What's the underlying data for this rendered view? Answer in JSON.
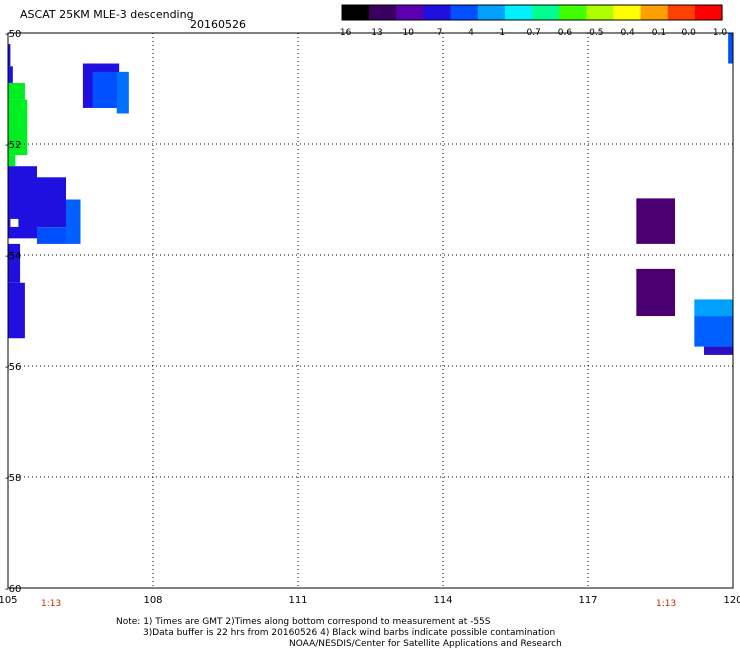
{
  "header": {
    "title": "ASCAT 25KM MLE-3 descending",
    "date": "20160526"
  },
  "colorbar": {
    "labels": [
      "-16",
      "-13",
      "-10",
      "-7",
      "-4",
      "-1",
      "-0.7",
      "-0.6",
      "-0.5",
      "-0.4",
      "-0.1",
      "0.0",
      "1.0"
    ],
    "colors": [
      "#000000",
      "#3a0060",
      "#5a00b0",
      "#2010e0",
      "#0050ff",
      "#00a0ff",
      "#00f0ff",
      "#00ff90",
      "#40ff00",
      "#b0ff00",
      "#ffff00",
      "#ffa000",
      "#ff4000",
      "#ff0000"
    ]
  },
  "footer": {
    "time_left": "1:13",
    "time_right": "1:13",
    "note_line1": "Note: 1) Times are GMT 2)Times along bottom correspond to measurement at -55S",
    "note_line2": "3)Data buffer is 22 hrs from 20160526 4) Black wind barbs indicate possible contamination",
    "note_line3": "NOAA/NESDIS/Center for Satellite Applications and Research"
  },
  "chart_data": {
    "type": "heatmap",
    "title": "ASCAT 25KM MLE-3 descending",
    "subtitle": "20160526",
    "xlim": [
      105,
      120
    ],
    "ylim": [
      -60,
      -50
    ],
    "x_ticks": [
      "105",
      "108",
      "111",
      "114",
      "117",
      "120"
    ],
    "x_tick_values": [
      105,
      108,
      111,
      114,
      117,
      120
    ],
    "y_ticks": [
      "-50",
      "-52",
      "-54",
      "-56",
      "-58",
      "-60"
    ],
    "y_tick_values": [
      -50,
      -52,
      -54,
      -56,
      -58,
      -60
    ],
    "grid": true,
    "cells": [
      {
        "lon0": 105.0,
        "lon1": 105.05,
        "lat0": -50.2,
        "lat1": -50.6,
        "color": "#2010e0"
      },
      {
        "lon0": 105.0,
        "lon1": 105.1,
        "lat0": -50.6,
        "lat1": -50.9,
        "color": "#2010e0"
      },
      {
        "lon0": 105.0,
        "lon1": 105.35,
        "lat0": -50.9,
        "lat1": -51.2,
        "color": "#00ee22"
      },
      {
        "lon0": 105.0,
        "lon1": 105.4,
        "lat0": -51.2,
        "lat1": -52.2,
        "color": "#00ee22"
      },
      {
        "lon0": 105.0,
        "lon1": 105.15,
        "lat0": -52.2,
        "lat1": -52.4,
        "color": "#00ee22"
      },
      {
        "lon0": 106.55,
        "lon1": 107.3,
        "lat0": -50.55,
        "lat1": -51.35,
        "color": "#2010e0"
      },
      {
        "lon0": 106.75,
        "lon1": 107.25,
        "lat0": -50.7,
        "lat1": -51.35,
        "color": "#0050ff"
      },
      {
        "lon0": 107.25,
        "lon1": 107.5,
        "lat0": -50.7,
        "lat1": -51.45,
        "color": "#0070ff"
      },
      {
        "lon0": 105.0,
        "lon1": 105.6,
        "lat0": -52.4,
        "lat1": -53.7,
        "color": "#2010e0"
      },
      {
        "lon0": 105.6,
        "lon1": 106.2,
        "lat0": -52.6,
        "lat1": -53.5,
        "color": "#2010e0"
      },
      {
        "lon0": 105.6,
        "lon1": 106.2,
        "lat0": -53.5,
        "lat1": -53.8,
        "color": "#0050ff"
      },
      {
        "lon0": 106.2,
        "lon1": 106.5,
        "lat0": -53.0,
        "lat1": -53.8,
        "color": "#0060ff"
      },
      {
        "lon0": 105.0,
        "lon1": 105.25,
        "lat0": -53.8,
        "lat1": -54.5,
        "color": "#2010e0"
      },
      {
        "lon0": 105.0,
        "lon1": 105.35,
        "lat0": -54.5,
        "lat1": -55.5,
        "color": "#2010e0"
      },
      {
        "lon0": 118.0,
        "lon1": 118.8,
        "lat0": -52.98,
        "lat1": -53.8,
        "color": "#4a0070"
      },
      {
        "lon0": 118.0,
        "lon1": 118.8,
        "lat0": -54.25,
        "lat1": -55.1,
        "color": "#4a0070"
      },
      {
        "lon0": 119.2,
        "lon1": 120.0,
        "lat0": -54.8,
        "lat1": -55.1,
        "color": "#00a0ff"
      },
      {
        "lon0": 119.2,
        "lon1": 120.0,
        "lat0": -55.1,
        "lat1": -55.65,
        "color": "#0060ff"
      },
      {
        "lon0": 119.4,
        "lon1": 120.0,
        "lat0": -55.65,
        "lat1": -55.8,
        "color": "#2a10c0"
      },
      {
        "lon0": 119.9,
        "lon1": 120.0,
        "lat0": -50.0,
        "lat1": -50.55,
        "color": "#0050ff"
      }
    ]
  }
}
